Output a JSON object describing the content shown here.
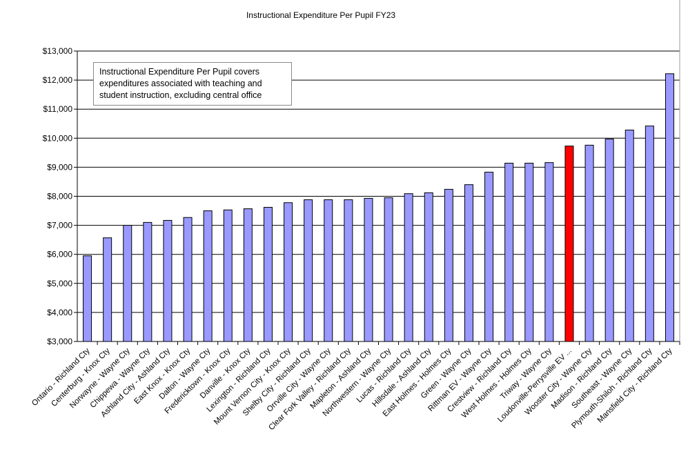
{
  "chart_data": {
    "type": "bar",
    "title": "Instructional  Expenditure  Per  Pupil  FY23",
    "xlabel": "",
    "ylabel": "",
    "ylim": [
      3000,
      13000
    ],
    "yticks": [
      "$3,000",
      "$4,000",
      "$5,000",
      "$6,000",
      "$7,000",
      "$8,000",
      "$9,000",
      "$10,000",
      "$11,000",
      "$12,000",
      "$13,000"
    ],
    "grid": true,
    "annotation": "Instructional Expenditure Per Pupil covers expenditures associated with teaching and student instruction, excluding central office",
    "colors": {
      "default": "#9999FF",
      "highlight": "#FF0000"
    },
    "highlight_category": "Loudonville-Perrysville EV ...",
    "categories": [
      "Ontario - Richland Cty",
      "Centerburg - Knox Cty",
      "Norwayne - Wayne Cty",
      "Chippewa - Wayne Cty",
      "Ashland City - Ashland Cty",
      "East Knox - Knox Cty",
      "Dalton - Wayne Cty",
      "Fredericktown - Knox Cty",
      "Danville - Knox Cty",
      "Lexington - Richland Cty",
      "Mount Vernon City - Knox Cty",
      "Shelby City - Richland Cty",
      "Orrville City - Wayne Cty",
      "Clear Fork Valley - Richland Cty",
      "Mapleton - Ashland Cty",
      "Northwestern - Wayne Cty",
      "Lucas - Richland Cty",
      "Hillsdale - Ashland Cty",
      "East Holmes - Holmes Cty",
      "Green - Wayne Cty",
      "Rittman EV - Wayne Cty",
      "Crestview - Richland Cty",
      "West Holmes - Holmes Cty",
      "Triway - Wayne Cty",
      "Loudonville-Perrysville EV ...",
      "Wooster City - Wayne Cty",
      "Madison - Richland Cty",
      "Southeast - Wayne Cty",
      "Plymouth-Shiloh - Richland Cty",
      "Mansfield City - Richland Cty"
    ],
    "values": [
      5950,
      6570,
      7000,
      7100,
      7170,
      7270,
      7500,
      7530,
      7570,
      7620,
      7780,
      7880,
      7880,
      7880,
      7930,
      7950,
      8090,
      8120,
      8240,
      8400,
      8830,
      9140,
      9140,
      9160,
      9730,
      9760,
      9970,
      10280,
      10420,
      12220
    ]
  }
}
